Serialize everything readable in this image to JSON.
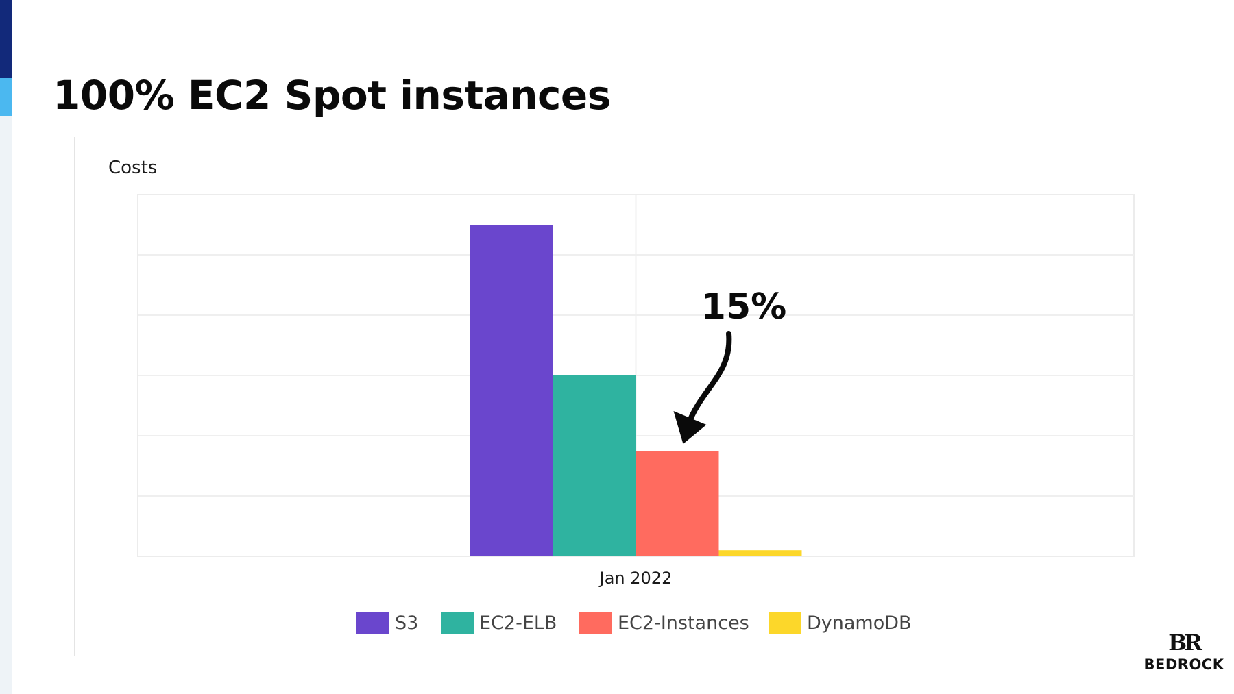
{
  "slide": {
    "title": "100% EC2 Spot instances",
    "accent_colors": {
      "dark": "#12297a",
      "light": "#4bb8f0"
    }
  },
  "chart_data": {
    "type": "bar",
    "ylabel": "Costs",
    "xlabel": "",
    "categories": [
      "Jan 2022"
    ],
    "ylim": [
      0,
      6
    ],
    "grid": true,
    "legend_position": "bottom",
    "series": [
      {
        "name": "S3",
        "values": [
          5.5
        ],
        "color": "#6a46cd"
      },
      {
        "name": "EC2-ELB",
        "values": [
          3.0
        ],
        "color": "#2fb3a0"
      },
      {
        "name": "EC2-Instances",
        "values": [
          1.75
        ],
        "color": "#ff6b5f"
      },
      {
        "name": "DynamoDB",
        "values": [
          0.1
        ],
        "color": "#fcd72a"
      }
    ],
    "annotation": {
      "text": "15%",
      "target_series": "EC2-Instances"
    }
  },
  "logo": {
    "mark": "BR",
    "text": "BEDROCK"
  }
}
